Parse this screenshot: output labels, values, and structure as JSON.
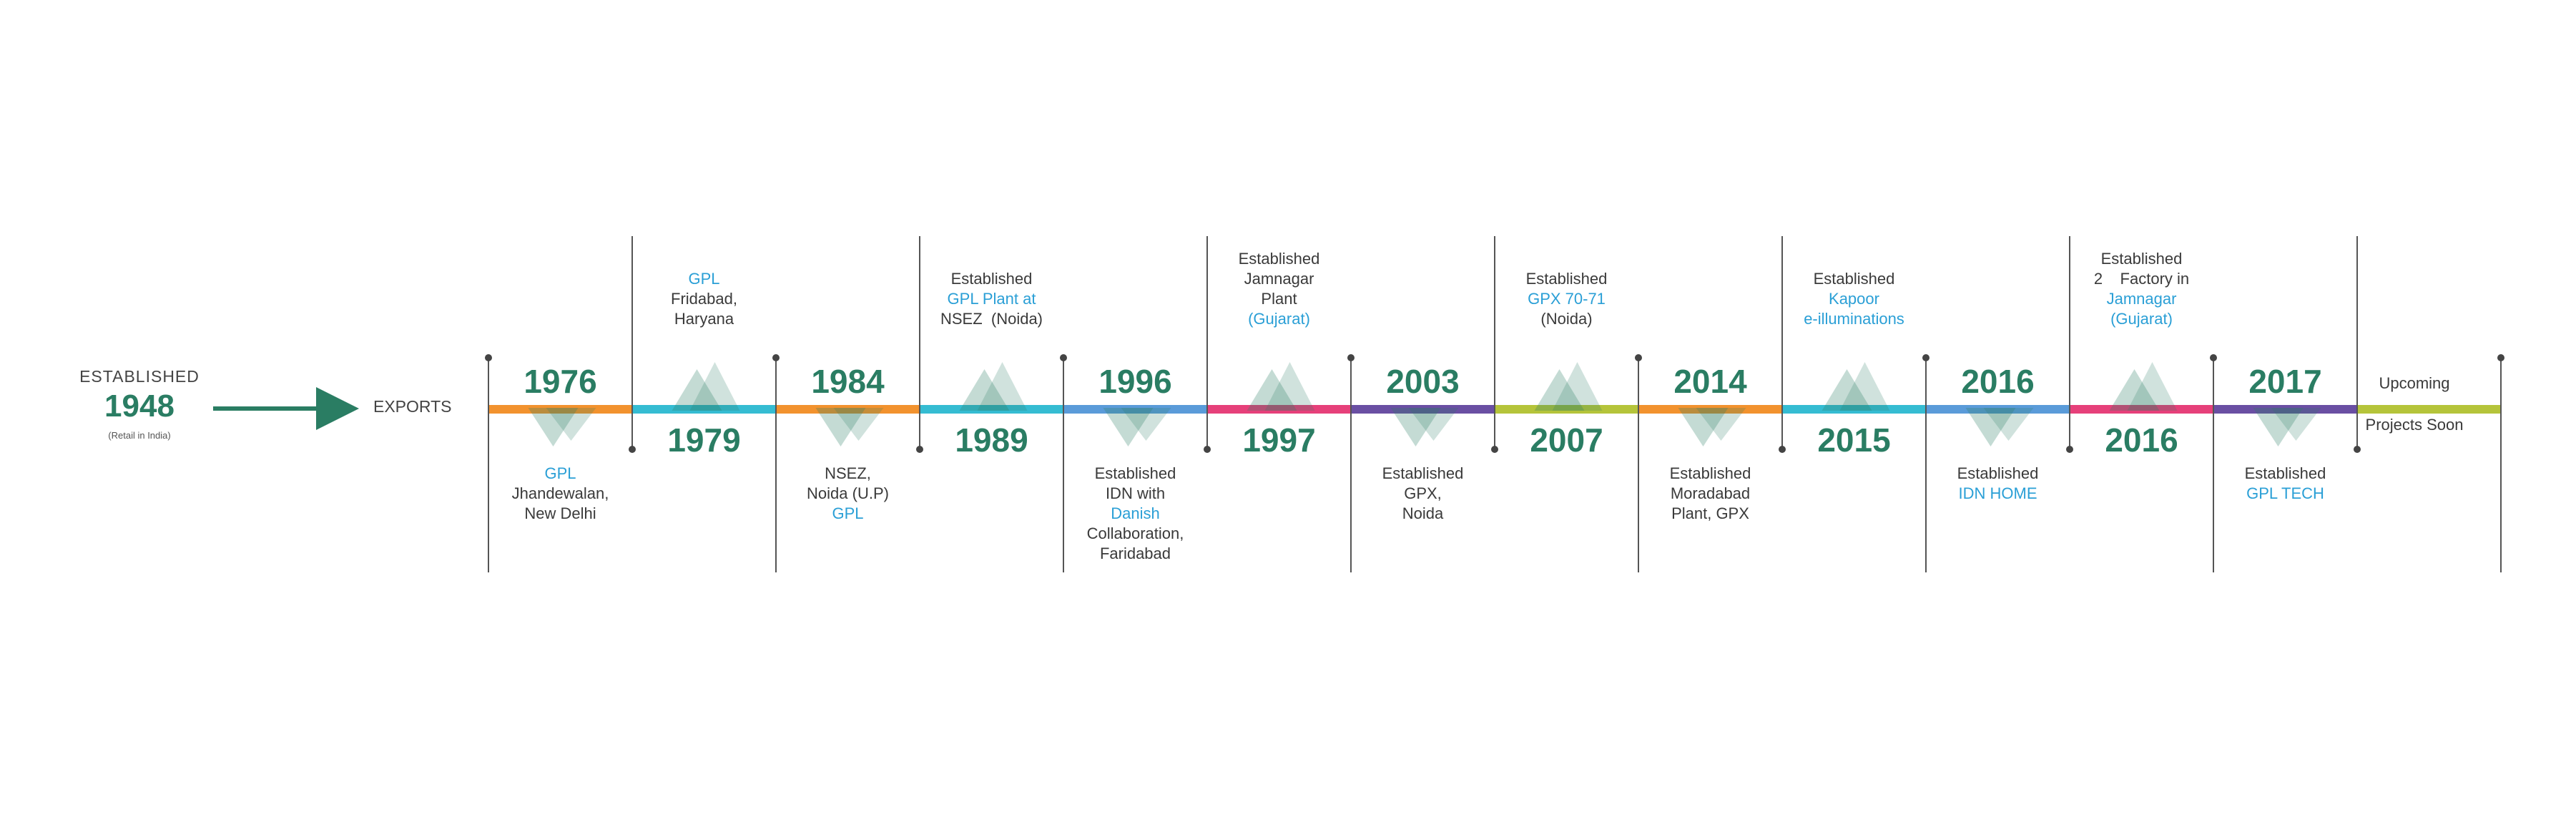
{
  "start": {
    "label": "ESTABLISHED",
    "year": "1948",
    "note": "(Retail in India)",
    "arrow_target": "EXPORTS"
  },
  "segments": [
    {
      "color": "#f2922e"
    },
    {
      "color": "#35bcd2"
    },
    {
      "color": "#f2922e"
    },
    {
      "color": "#35bcd2"
    },
    {
      "color": "#5a9bd9"
    },
    {
      "color": "#e6407a"
    },
    {
      "color": "#6a4fa3"
    },
    {
      "color": "#b5c43a"
    },
    {
      "color": "#f2922e"
    },
    {
      "color": "#35bcd2"
    },
    {
      "color": "#5a9bd9"
    },
    {
      "color": "#e6407a"
    },
    {
      "color": "#6a4fa3"
    },
    {
      "color": "#b5c43a"
    }
  ],
  "milestones": [
    {
      "year": "1976",
      "position": "above",
      "desc": [
        {
          "text": "GPL",
          "hl": true
        },
        {
          "text": "Jhandewalan,",
          "hl": false
        },
        {
          "text": "New Delhi",
          "hl": false
        }
      ]
    },
    {
      "year": "1979",
      "position": "below",
      "desc": [
        {
          "text": "GPL",
          "hl": true
        },
        {
          "text": "Fridabad,",
          "hl": false
        },
        {
          "text": "Haryana",
          "hl": false
        }
      ]
    },
    {
      "year": "1984",
      "position": "above",
      "desc": [
        {
          "text": "NSEZ,",
          "hl": false
        },
        {
          "text": "Noida (U.P)",
          "hl": false
        },
        {
          "text": "GPL",
          "hl": true
        }
      ]
    },
    {
      "year": "1989",
      "position": "below",
      "desc": [
        {
          "text": "Established",
          "hl": false
        },
        {
          "text": "GPL Plant at",
          "hl": true
        },
        {
          "text": "NSEZ  (Noida)",
          "hl": false
        }
      ]
    },
    {
      "year": "1996",
      "position": "above",
      "desc": [
        {
          "text": "Established",
          "hl": false
        },
        {
          "text": "IDN with",
          "hl": false
        },
        {
          "text": "Danish",
          "hl": true
        },
        {
          "text": "Collaboration,",
          "hl": false
        },
        {
          "text": "Faridabad",
          "hl": false
        }
      ]
    },
    {
      "year": "1997",
      "position": "below",
      "desc": [
        {
          "text": "Established",
          "hl": false
        },
        {
          "text": "Jamnagar",
          "hl": false
        },
        {
          "text": "Plant",
          "hl": false
        },
        {
          "text": "(Gujarat)",
          "hl": true
        }
      ]
    },
    {
      "year": "2003",
      "position": "above",
      "desc": [
        {
          "text": "Established",
          "hl": false
        },
        {
          "text": "GPX,",
          "hl": false
        },
        {
          "text": "Noida",
          "hl": false
        }
      ]
    },
    {
      "year": "2007",
      "position": "below",
      "desc": [
        {
          "text": "Established",
          "hl": false
        },
        {
          "text": "GPX 70-71",
          "hl": true
        },
        {
          "text": "(Noida)",
          "hl": false
        }
      ]
    },
    {
      "year": "2014",
      "position": "above",
      "desc": [
        {
          "text": "Established",
          "hl": false
        },
        {
          "text": "Moradabad",
          "hl": false
        },
        {
          "text": "Plant, GPX",
          "hl": false
        }
      ]
    },
    {
      "year": "2015",
      "position": "below",
      "desc": [
        {
          "text": "Established",
          "hl": false
        },
        {
          "text": "Kapoor",
          "hl": true
        },
        {
          "text": "e-illuminations",
          "hl": true
        }
      ]
    },
    {
      "year": "2016",
      "position": "above",
      "desc": [
        {
          "text": "Established",
          "hl": false
        },
        {
          "text": "IDN HOME",
          "hl": true
        }
      ]
    },
    {
      "year": "2016",
      "position": "below",
      "desc": [
        {
          "text": "Established",
          "hl": false
        },
        {
          "text": "2    Factory in",
          "hl": false
        },
        {
          "text": "Jamnagar",
          "hl": true
        },
        {
          "text": "(Gujarat)",
          "hl": true
        }
      ]
    },
    {
      "year": "2017",
      "position": "above",
      "desc": [
        {
          "text": "Established",
          "hl": false
        },
        {
          "text": "GPL TECH",
          "hl": true
        }
      ]
    }
  ],
  "upcoming": {
    "line1": "Upcoming",
    "line2": "Projects Soon"
  },
  "colors": {
    "year": "#2a7d63",
    "highlight": "#2a9fd6",
    "arrow": "#2a7d63",
    "tick": "#555555"
  }
}
